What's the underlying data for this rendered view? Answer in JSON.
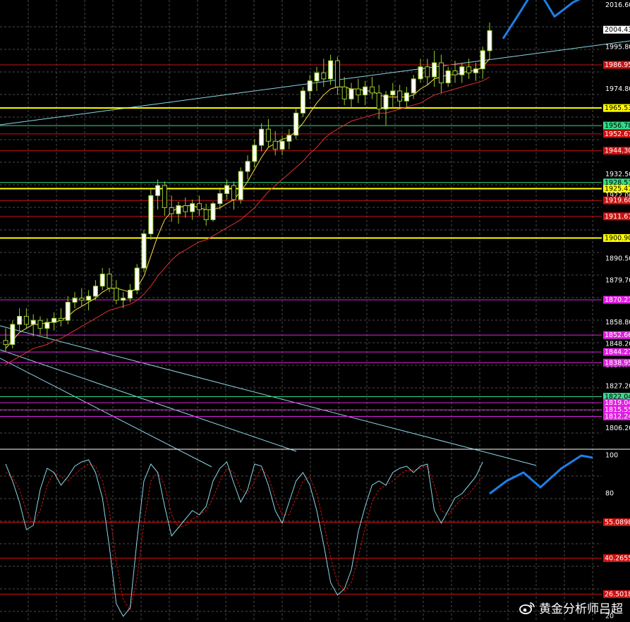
{
  "colors": {
    "background": "#000000",
    "grid": "#4a4a4a",
    "up_candle": "#ffffff",
    "down_candle": "#000000",
    "candle_wick": "#9acd32",
    "forecast": "#1e7fe8",
    "red_line": "#d01010",
    "yellow_line": "#ffff00",
    "green_line": "#33dd88",
    "magenta_line": "#e020e0",
    "trend_line": "#8ad8e8",
    "stoch_main": "#8ad8e8",
    "stoch_signal": "#d01010"
  },
  "watermark": {
    "text": "黄金分析师吕超",
    "icon": "weibo-icon"
  },
  "chart_data": [
    {
      "type": "candlestick",
      "ylim": [
        1797.0,
        2018.5
      ],
      "y_ticks": [
        "2016.60",
        "1995.80",
        "1974.80",
        "1932.50",
        "1922.00",
        "1890.50",
        "1879.70",
        "1858.80",
        "1848.20",
        "1837.70",
        "1827.20",
        "1806.20"
      ],
      "current_price": "2004.43",
      "horizontal_levels": [
        {
          "value": 1986.95,
          "label": "1986.95",
          "color": "red"
        },
        {
          "value": 1965.53,
          "label": "1965.53",
          "color": "yellow"
        },
        {
          "value": 1956.78,
          "label": "1956.78",
          "color": "green"
        },
        {
          "value": 1952.67,
          "label": "1952.67",
          "color": "red"
        },
        {
          "value": 1944.3,
          "label": "1944.30",
          "color": "red"
        },
        {
          "value": 1928.51,
          "label": "1928.51",
          "color": "green"
        },
        {
          "value": 1925.47,
          "label": "1925.47",
          "color": "yellow"
        },
        {
          "value": 1919.6,
          "label": "1919.60",
          "color": "red"
        },
        {
          "value": 1911.67,
          "label": "1911.67",
          "color": "red"
        },
        {
          "value": 1900.9,
          "label": "1900.90",
          "color": "yellow"
        },
        {
          "value": 1870.21,
          "label": "1870.21",
          "color": "magenta"
        },
        {
          "value": 1852.66,
          "label": "1852.66",
          "color": "magenta"
        },
        {
          "value": 1844.27,
          "label": "1844.27",
          "color": "magenta"
        },
        {
          "value": 1838.95,
          "label": "1838.95",
          "color": "magenta"
        },
        {
          "value": 1822.04,
          "label": "1822.04",
          "color": "green"
        },
        {
          "value": 1819.04,
          "label": "1819.04",
          "color": "magenta"
        },
        {
          "value": 1815.55,
          "label": "1815.55",
          "color": "magenta"
        },
        {
          "value": 1812.24,
          "label": "1812.24",
          "color": "magenta"
        }
      ],
      "candles": [
        [
          1850,
          1856,
          1844,
          1848
        ],
        [
          1848,
          1860,
          1846,
          1858
        ],
        [
          1858,
          1866,
          1855,
          1862
        ],
        [
          1862,
          1866,
          1856,
          1858
        ],
        [
          1858,
          1863,
          1852,
          1860
        ],
        [
          1860,
          1862,
          1853,
          1856
        ],
        [
          1856,
          1861,
          1851,
          1859
        ],
        [
          1859,
          1864,
          1855,
          1861
        ],
        [
          1861,
          1866,
          1857,
          1860
        ],
        [
          1860,
          1872,
          1858,
          1869
        ],
        [
          1869,
          1874,
          1866,
          1871
        ],
        [
          1871,
          1876,
          1867,
          1870
        ],
        [
          1870,
          1875,
          1865,
          1872
        ],
        [
          1872,
          1880,
          1870,
          1877
        ],
        [
          1877,
          1886,
          1875,
          1883
        ],
        [
          1883,
          1886,
          1874,
          1876
        ],
        [
          1876,
          1880,
          1868,
          1870
        ],
        [
          1870,
          1874,
          1866,
          1871
        ],
        [
          1871,
          1878,
          1869,
          1875
        ],
        [
          1875,
          1888,
          1873,
          1886
        ],
        [
          1886,
          1905,
          1884,
          1903
        ],
        [
          1903,
          1925,
          1900,
          1922
        ],
        [
          1922,
          1930,
          1915,
          1927
        ],
        [
          1927,
          1929,
          1912,
          1916
        ],
        [
          1916,
          1922,
          1909,
          1913
        ],
        [
          1913,
          1919,
          1908,
          1917
        ],
        [
          1917,
          1921,
          1911,
          1914
        ],
        [
          1914,
          1920,
          1910,
          1918
        ],
        [
          1918,
          1922,
          1912,
          1915
        ],
        [
          1915,
          1918,
          1907,
          1910
        ],
        [
          1910,
          1919,
          1909,
          1918
        ],
        [
          1918,
          1926,
          1915,
          1923
        ],
        [
          1923,
          1930,
          1920,
          1927
        ],
        [
          1927,
          1929,
          1915,
          1920
        ],
        [
          1920,
          1936,
          1918,
          1934
        ],
        [
          1934,
          1942,
          1930,
          1939
        ],
        [
          1939,
          1950,
          1936,
          1947
        ],
        [
          1947,
          1958,
          1944,
          1955
        ],
        [
          1955,
          1960,
          1946,
          1949
        ],
        [
          1949,
          1954,
          1942,
          1945
        ],
        [
          1945,
          1952,
          1942,
          1949
        ],
        [
          1949,
          1955,
          1945,
          1952
        ],
        [
          1952,
          1965,
          1950,
          1963
        ],
        [
          1963,
          1976,
          1961,
          1974
        ],
        [
          1974,
          1982,
          1970,
          1979
        ],
        [
          1979,
          1986,
          1974,
          1983
        ],
        [
          1983,
          1990,
          1976,
          1980
        ],
        [
          1980,
          1992,
          1977,
          1989
        ],
        [
          1989,
          1991,
          1972,
          1976
        ],
        [
          1976,
          1981,
          1967,
          1970
        ],
        [
          1970,
          1978,
          1966,
          1975
        ],
        [
          1975,
          1980,
          1968,
          1972
        ],
        [
          1972,
          1979,
          1967,
          1976
        ],
        [
          1976,
          1981,
          1970,
          1973
        ],
        [
          1973,
          1977,
          1960,
          1965
        ],
        [
          1965,
          1974,
          1957,
          1972
        ],
        [
          1972,
          1978,
          1966,
          1974
        ],
        [
          1974,
          1977,
          1966,
          1969
        ],
        [
          1969,
          1976,
          1966,
          1973
        ],
        [
          1973,
          1982,
          1970,
          1980
        ],
        [
          1980,
          1990,
          1978,
          1986
        ],
        [
          1986,
          1990,
          1977,
          1981
        ],
        [
          1981,
          1994,
          1976,
          1988
        ],
        [
          1988,
          1992,
          1973,
          1978
        ],
        [
          1978,
          1986,
          1976,
          1984
        ],
        [
          1984,
          1989,
          1978,
          1982
        ],
        [
          1982,
          1988,
          1978,
          1986
        ],
        [
          1986,
          1990,
          1980,
          1983
        ],
        [
          1983,
          1988,
          1979,
          1985
        ],
        [
          1985,
          1996,
          1980,
          1994
        ],
        [
          1994,
          2008,
          1990,
          2004
        ]
      ],
      "forecast": [
        [
          713,
          2000
        ],
        [
          735,
          2012
        ],
        [
          760,
          2026
        ],
        [
          786,
          2011
        ],
        [
          812,
          2018
        ],
        [
          836,
          2022
        ]
      ],
      "ma_lines": [
        {
          "color": "#ffe040",
          "values": [
            1846,
            1850,
            1854,
            1856,
            1858,
            1858,
            1859,
            1859,
            1860,
            1862,
            1865,
            1867,
            1869,
            1871,
            1874,
            1876,
            1876,
            1875,
            1874,
            1876,
            1882,
            1892,
            1902,
            1910,
            1914,
            1916,
            1917,
            1917,
            1916,
            1915,
            1915,
            1916,
            1918,
            1920,
            1924,
            1929,
            1935,
            1941,
            1946,
            1948,
            1950,
            1951,
            1954,
            1958,
            1963,
            1968,
            1972,
            1975,
            1976,
            1976,
            1975,
            1975,
            1974,
            1974,
            1972,
            1971,
            1971,
            1971,
            1971,
            1972,
            1975,
            1977,
            1980,
            1981,
            1982,
            1982,
            1983,
            1984,
            1984,
            1986,
            1990
          ]
        },
        {
          "color": "#e03030",
          "values": [
            1838,
            1840,
            1842,
            1844,
            1846,
            1847,
            1848,
            1850,
            1851,
            1853,
            1855,
            1857,
            1859,
            1861,
            1863,
            1865,
            1866,
            1867,
            1868,
            1870,
            1873,
            1877,
            1882,
            1886,
            1890,
            1893,
            1895,
            1897,
            1899,
            1900,
            1902,
            1904,
            1906,
            1908,
            1910,
            1913,
            1916,
            1920,
            1924,
            1927,
            1930,
            1933,
            1936,
            1939,
            1943,
            1946,
            1950,
            1953,
            1955,
            1957,
            1959,
            1960,
            1961,
            1962,
            1963,
            1963,
            1964,
            1965,
            1966,
            1967,
            1968,
            1970,
            1972,
            1973,
            1974,
            1975,
            1976,
            1977,
            1978,
            1979,
            1981
          ]
        }
      ]
    },
    {
      "type": "line",
      "ylim": [
        20,
        100
      ],
      "y_ticks": [
        "100",
        "80",
        "20"
      ],
      "levels": [
        {
          "value": 66.5,
          "label": "55.0898"
        },
        {
          "value": 49.5,
          "label": "40.2655"
        },
        {
          "value": 32.5,
          "label": "26.5018"
        }
      ],
      "series_main": [
        94,
        86,
        76,
        63,
        65,
        82,
        92,
        90,
        84,
        88,
        93,
        95,
        96,
        90,
        78,
        55,
        28,
        22,
        26,
        58,
        86,
        94,
        90,
        74,
        60,
        64,
        68,
        72,
        70,
        74,
        86,
        92,
        95,
        85,
        76,
        82,
        94,
        93,
        84,
        72,
        66,
        76,
        86,
        90,
        84,
        72,
        56,
        38,
        32,
        35,
        44,
        62,
        74,
        84,
        86,
        84,
        90,
        92,
        93,
        90,
        93,
        94,
        72,
        66,
        72,
        78,
        80,
        84,
        88,
        95
      ],
      "series_signal": [
        90,
        88,
        82,
        72,
        66,
        72,
        84,
        90,
        88,
        86,
        89,
        92,
        94,
        93,
        86,
        72,
        48,
        30,
        25,
        40,
        66,
        86,
        90,
        84,
        70,
        64,
        65,
        68,
        70,
        72,
        78,
        86,
        92,
        90,
        82,
        80,
        86,
        92,
        88,
        78,
        70,
        70,
        78,
        86,
        88,
        80,
        66,
        50,
        38,
        34,
        38,
        50,
        64,
        76,
        82,
        84,
        86,
        89,
        91,
        91,
        92,
        93,
        84,
        72,
        70,
        74,
        78,
        80,
        84,
        88
      ],
      "forecast": [
        [
          694,
          80
        ],
        [
          718,
          86
        ],
        [
          742,
          90
        ],
        [
          766,
          83
        ],
        [
          796,
          92
        ],
        [
          824,
          98
        ],
        [
          840,
          97
        ]
      ]
    }
  ]
}
